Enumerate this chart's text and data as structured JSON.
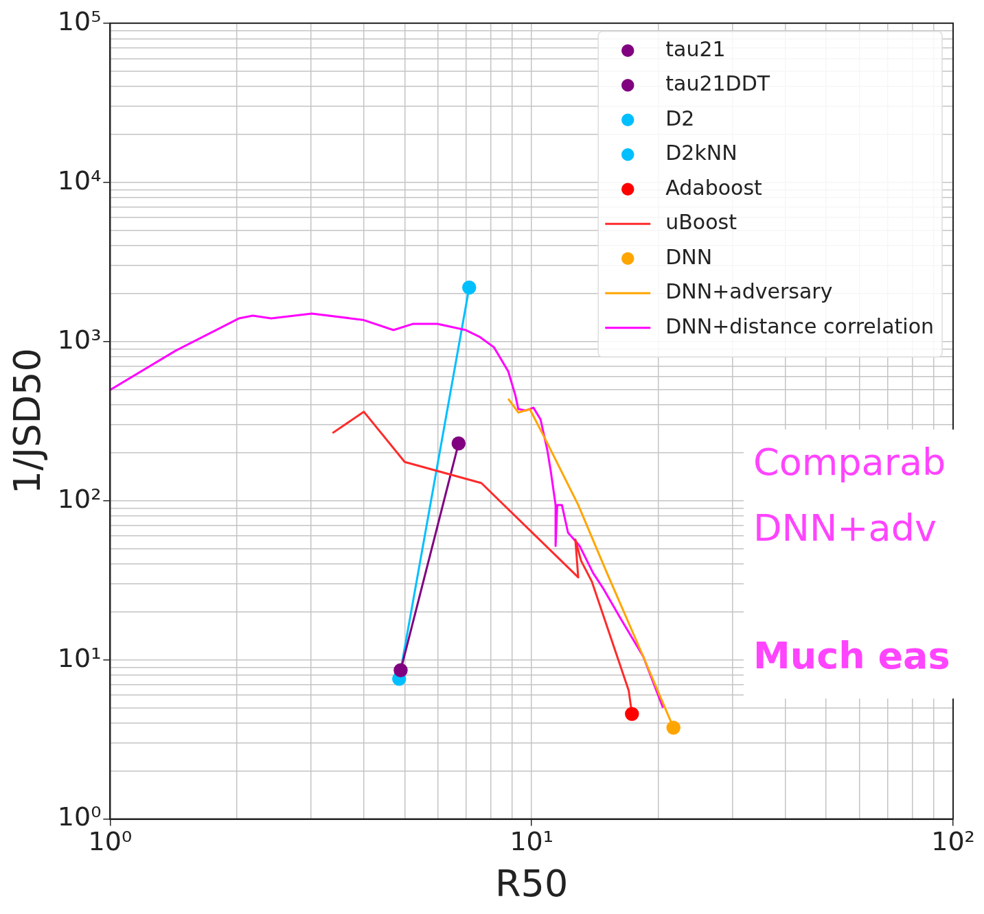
{
  "chart_data": {
    "type": "line",
    "xlabel": "R50",
    "ylabel": "1/JSD50",
    "log": "xy",
    "grid": true,
    "legend": "top right",
    "xlim": [
      1,
      100
    ],
    "xticks": [
      {
        "value": 1,
        "label": "10⁰"
      },
      {
        "value": 10,
        "label": "10¹"
      },
      {
        "value": 100,
        "label": "10²"
      }
    ],
    "ylim": [
      1,
      100000
    ],
    "yticks": [
      {
        "value": 1,
        "label": "10⁰"
      },
      {
        "value": 10,
        "label": "10¹"
      },
      {
        "value": 100,
        "label": "10²"
      },
      {
        "value": 1000,
        "label": "10³"
      },
      {
        "value": 10000,
        "label": "10⁴"
      },
      {
        "value": 100000,
        "label": "10⁵"
      }
    ],
    "series": [
      {
        "name": "tau21",
        "type": "scatter",
        "marker": "circle",
        "color": "#800080",
        "x": [
          4.89
        ],
        "values": [
          8.6
        ]
      },
      {
        "name": "tau21DDT",
        "type": "scatter",
        "marker": "circle",
        "color": "#800080",
        "x": [
          6.71
        ],
        "values": [
          229
        ]
      },
      {
        "name": "D2",
        "type": "scatter",
        "marker": "circle",
        "color": "#00bfff",
        "x": [
          4.85
        ],
        "values": [
          7.6
        ]
      },
      {
        "name": "D2kNN",
        "type": "scatter",
        "marker": "circle",
        "color": "#00bfff",
        "x": [
          7.11
        ],
        "values": [
          2183
        ]
      },
      {
        "name": "Adaboost",
        "type": "scatter",
        "marker": "circle",
        "color": "#ff0000",
        "x": [
          17.3
        ],
        "values": [
          4.57
        ]
      },
      {
        "name": "uBoost",
        "color": "#ff2a2a",
        "x": [
          3.37,
          4.0,
          5.0,
          7.6,
          12.9,
          12.7,
          13.1,
          13.9,
          17.0,
          17.3
        ],
        "values": [
          266,
          362,
          175,
          129,
          33,
          57,
          42,
          31,
          6.4,
          4.57
        ]
      },
      {
        "name": "DNN",
        "type": "scatter",
        "marker": "circle",
        "color": "#ffa500",
        "x": [
          21.7
        ],
        "values": [
          3.75
        ]
      },
      {
        "name": "DNN+adversary",
        "color": "#ffa500",
        "x": [
          8.8,
          9.3,
          9.9,
          10.7,
          12.9,
          15.1,
          18.4,
          21.7
        ],
        "values": [
          437,
          358,
          376,
          253,
          94,
          35,
          10.5,
          3.75
        ]
      },
      {
        "name": "DNN+distance correlation",
        "color": "#ff00ff",
        "x": [
          1.0,
          1.43,
          2.02,
          2.18,
          2.41,
          3.01,
          3.98,
          4.7,
          5.22,
          5.98,
          6.98,
          7.54,
          8.14,
          8.8,
          9.15,
          9.3,
          9.7,
          10.1,
          10.5,
          10.9,
          11.1,
          11.4,
          11.4,
          11.5,
          11.8,
          12.2,
          13.0,
          14.0,
          14.8,
          16.3,
          18.4,
          20.5
        ],
        "values": [
          497,
          876,
          1397,
          1453,
          1397,
          1497,
          1368,
          1180,
          1290,
          1290,
          1180,
          1067,
          920,
          650,
          459,
          376,
          369,
          384,
          324,
          207,
          154,
          94,
          52,
          94,
          94,
          63,
          52,
          35,
          28,
          18,
          10.5,
          5.0
        ]
      },
      {
        "color": "#800080",
        "x": [
          4.89,
          6.71
        ],
        "values": [
          8.6,
          229
        ]
      },
      {
        "color": "#00bfff",
        "x": [
          4.85,
          7.11
        ],
        "values": [
          7.6,
          2183
        ]
      }
    ],
    "annotations": [
      "Comparab",
      "DNN+adv",
      "Much eas"
    ]
  }
}
